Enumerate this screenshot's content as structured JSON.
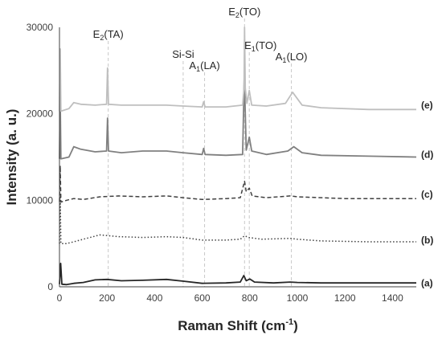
{
  "chart_data": {
    "type": "line",
    "title": "",
    "xlabel": "Raman Shift (cm",
    "xlabel_sup": "-1",
    "xlabel_close": ")",
    "ylabel": "Intensity (a. u.)",
    "xlim": [
      0,
      1500
    ],
    "ylim": [
      0,
      30000
    ],
    "x_ticks": [
      "0",
      "200",
      "400",
      "600",
      "800",
      "1000",
      "1200",
      "1400"
    ],
    "y_ticks": [
      "0",
      "10000",
      "20000",
      "30000"
    ],
    "grid": false,
    "peak_labels": [
      {
        "main": "E",
        "sub": "2",
        "rest": "(TA)",
        "x": 205
      },
      {
        "main": "Si-Si",
        "sub": "",
        "rest": "",
        "x": 520
      },
      {
        "main": "A",
        "sub": "1",
        "rest": "(LA)",
        "x": 610
      },
      {
        "main": "E",
        "sub": "2",
        "rest": "(TO)",
        "x": 778
      },
      {
        "main": "E",
        "sub": "1",
        "rest": "(TO)",
        "x": 798
      },
      {
        "main": "A",
        "sub": "1",
        "rest": "(LO)",
        "x": 975
      }
    ],
    "series": [
      {
        "name": "(a)",
        "color": "#262626",
        "dash": "solid",
        "label_y": 400,
        "points": [
          [
            0,
            300
          ],
          [
            5,
            2700
          ],
          [
            10,
            300
          ],
          [
            30,
            250
          ],
          [
            60,
            400
          ],
          [
            100,
            500
          ],
          [
            150,
            800
          ],
          [
            200,
            850
          ],
          [
            260,
            700
          ],
          [
            350,
            750
          ],
          [
            450,
            850
          ],
          [
            520,
            650
          ],
          [
            600,
            400
          ],
          [
            700,
            450
          ],
          [
            760,
            550
          ],
          [
            775,
            1300
          ],
          [
            785,
            700
          ],
          [
            800,
            900
          ],
          [
            820,
            550
          ],
          [
            900,
            450
          ],
          [
            970,
            550
          ],
          [
            1000,
            500
          ],
          [
            1100,
            450
          ],
          [
            1300,
            450
          ],
          [
            1500,
            450
          ]
        ]
      },
      {
        "name": "(b)",
        "color": "#404040",
        "dash": "dotted",
        "label_y": 5400,
        "points": [
          [
            0,
            5000
          ],
          [
            3,
            10500
          ],
          [
            6,
            5000
          ],
          [
            30,
            5000
          ],
          [
            60,
            5200
          ],
          [
            100,
            5500
          ],
          [
            170,
            6000
          ],
          [
            250,
            5800
          ],
          [
            350,
            5700
          ],
          [
            450,
            5800
          ],
          [
            520,
            5700
          ],
          [
            600,
            5400
          ],
          [
            700,
            5400
          ],
          [
            760,
            5500
          ],
          [
            778,
            5900
          ],
          [
            795,
            5700
          ],
          [
            850,
            5500
          ],
          [
            970,
            5600
          ],
          [
            1000,
            5500
          ],
          [
            1100,
            5300
          ],
          [
            1300,
            5200
          ],
          [
            1500,
            5200
          ]
        ]
      },
      {
        "name": "(c)",
        "color": "#404040",
        "dash": "dashed",
        "label_y": 10700,
        "points": [
          [
            0,
            9800
          ],
          [
            3,
            14000
          ],
          [
            6,
            9800
          ],
          [
            30,
            10000
          ],
          [
            60,
            10200
          ],
          [
            100,
            10100
          ],
          [
            170,
            10400
          ],
          [
            250,
            10500
          ],
          [
            350,
            10400
          ],
          [
            450,
            10500
          ],
          [
            520,
            10300
          ],
          [
            600,
            10100
          ],
          [
            700,
            10200
          ],
          [
            760,
            10300
          ],
          [
            778,
            12200
          ],
          [
            785,
            11000
          ],
          [
            798,
            11400
          ],
          [
            810,
            10500
          ],
          [
            870,
            10300
          ],
          [
            970,
            10500
          ],
          [
            1000,
            10400
          ],
          [
            1200,
            10200
          ],
          [
            1500,
            10200
          ]
        ]
      },
      {
        "name": "(d)",
        "color": "#808080",
        "dash": "solid",
        "label_y": 15300,
        "points": [
          [
            0,
            14800
          ],
          [
            3,
            22000
          ],
          [
            6,
            14800
          ],
          [
            40,
            15000
          ],
          [
            60,
            16200
          ],
          [
            90,
            15900
          ],
          [
            150,
            15600
          ],
          [
            198,
            15700
          ],
          [
            202,
            19500
          ],
          [
            206,
            15700
          ],
          [
            260,
            15500
          ],
          [
            350,
            15700
          ],
          [
            450,
            15700
          ],
          [
            520,
            15500
          ],
          [
            600,
            15300
          ],
          [
            606,
            16000
          ],
          [
            612,
            15300
          ],
          [
            700,
            15200
          ],
          [
            770,
            15300
          ],
          [
            777,
            24500
          ],
          [
            785,
            15800
          ],
          [
            798,
            17300
          ],
          [
            808,
            15700
          ],
          [
            870,
            15300
          ],
          [
            960,
            15700
          ],
          [
            985,
            16200
          ],
          [
            1020,
            15500
          ],
          [
            1100,
            15200
          ],
          [
            1300,
            15100
          ],
          [
            1500,
            15000
          ]
        ]
      },
      {
        "name": "(e)",
        "color": "#bfbfbf",
        "dash": "solid",
        "label_y": 21000,
        "points": [
          [
            0,
            20300
          ],
          [
            3,
            27500
          ],
          [
            6,
            20300
          ],
          [
            40,
            20600
          ],
          [
            60,
            21300
          ],
          [
            90,
            21100
          ],
          [
            150,
            21000
          ],
          [
            198,
            21100
          ],
          [
            202,
            25300
          ],
          [
            206,
            21100
          ],
          [
            260,
            21000
          ],
          [
            350,
            21000
          ],
          [
            450,
            21000
          ],
          [
            520,
            20900
          ],
          [
            600,
            20800
          ],
          [
            606,
            21400
          ],
          [
            612,
            20800
          ],
          [
            700,
            20800
          ],
          [
            770,
            21000
          ],
          [
            776,
            23000
          ],
          [
            778,
            30000
          ],
          [
            781,
            23000
          ],
          [
            788,
            21200
          ],
          [
            798,
            22700
          ],
          [
            808,
            21000
          ],
          [
            870,
            20900
          ],
          [
            950,
            21200
          ],
          [
            980,
            22500
          ],
          [
            1020,
            21000
          ],
          [
            1100,
            20700
          ],
          [
            1300,
            20500
          ],
          [
            1500,
            20500
          ]
        ]
      }
    ]
  }
}
